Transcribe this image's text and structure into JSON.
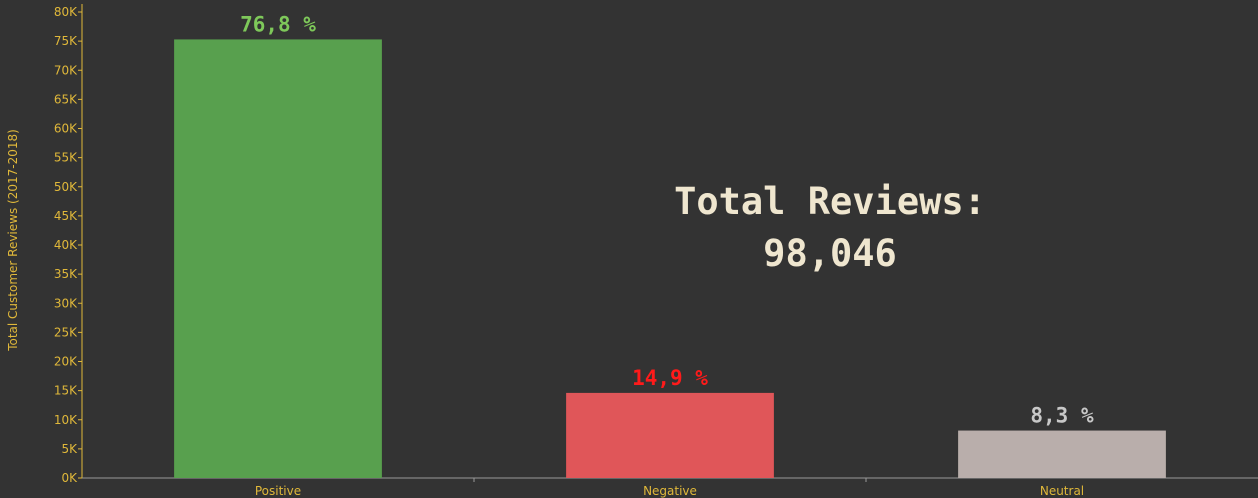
{
  "chart_data": {
    "type": "bar",
    "categories": [
      "Positive",
      "Negative",
      "Neutral"
    ],
    "values": [
      75292,
      14610,
      8144
    ],
    "data_labels": [
      "76,8 %",
      "14,9 %",
      "8,3 %"
    ],
    "ylabel": "Total Customer Reviews (2017-2018)",
    "xlabel": "",
    "ylim": [
      0,
      80000
    ],
    "y_ticks": [
      "0K",
      "5K",
      "10K",
      "15K",
      "20K",
      "25K",
      "30K",
      "35K",
      "40K",
      "45K",
      "50K",
      "55K",
      "60K",
      "65K",
      "70K",
      "75K",
      "80K"
    ],
    "grid": false,
    "bar_colors": [
      "#58a04e",
      "#e05659",
      "#b9aeab"
    ],
    "label_colors": [
      "#7ec85a",
      "#ff1a1a",
      "#c8c8c8"
    ],
    "background": "#333333",
    "axis_color": "#e0b83a"
  },
  "annotation": {
    "line1": "Total Reviews:",
    "line2": "98,046"
  }
}
